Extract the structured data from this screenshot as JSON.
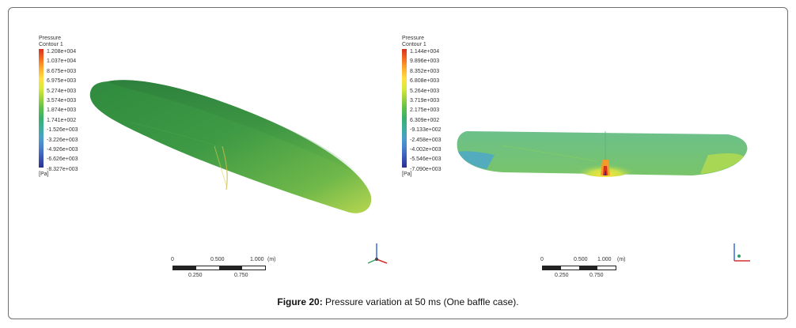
{
  "left": {
    "legend": {
      "title_line1": "Pressure",
      "title_line2": "Contour 1",
      "values": [
        "1.208e+004",
        "1.037e+004",
        "8.675e+003",
        "6.975e+003",
        "5.274e+003",
        "3.574e+003",
        "1.874e+003",
        "1.741e+002",
        "-1.526e+003",
        "-3.226e+003",
        "-4.926e+003",
        "-6.626e+003",
        "-8.327e+003"
      ],
      "unit": "[Pa]"
    },
    "scale": {
      "t0": "0",
      "t500": "0.500",
      "t1000": "1.000",
      "unit": "(m)",
      "t250": "0.250",
      "t750": "0.750"
    }
  },
  "right": {
    "legend": {
      "title_line1": "Pressure",
      "title_line2": "Contour 1",
      "values": [
        "1.144e+004",
        "9.896e+003",
        "8.352e+003",
        "6.808e+003",
        "5.264e+003",
        "3.719e+003",
        "2.175e+003",
        "6.309e+002",
        "-9.133e+002",
        "-2.458e+003",
        "-4.002e+003",
        "-5.546e+003",
        "-7.090e+003"
      ],
      "unit": "[Pa]"
    },
    "scale": {
      "t0": "0",
      "t500": "0.500",
      "t1000": "1.000",
      "unit": "(m)",
      "t250": "0.250",
      "t750": "0.750"
    }
  },
  "caption": {
    "label": "Figure 20:",
    "text": " Pressure variation at 50 ms (One baffle case)."
  },
  "colors": {
    "colormap": [
      "#d7301f",
      "#f46d20",
      "#fdae30",
      "#fee040",
      "#d8ea3a",
      "#9bd33c",
      "#5cbf4a",
      "#38b06a",
      "#3aaf9a",
      "#4a9fc8",
      "#4a7fcc",
      "#3a57b8",
      "#2a2f8f"
    ]
  }
}
